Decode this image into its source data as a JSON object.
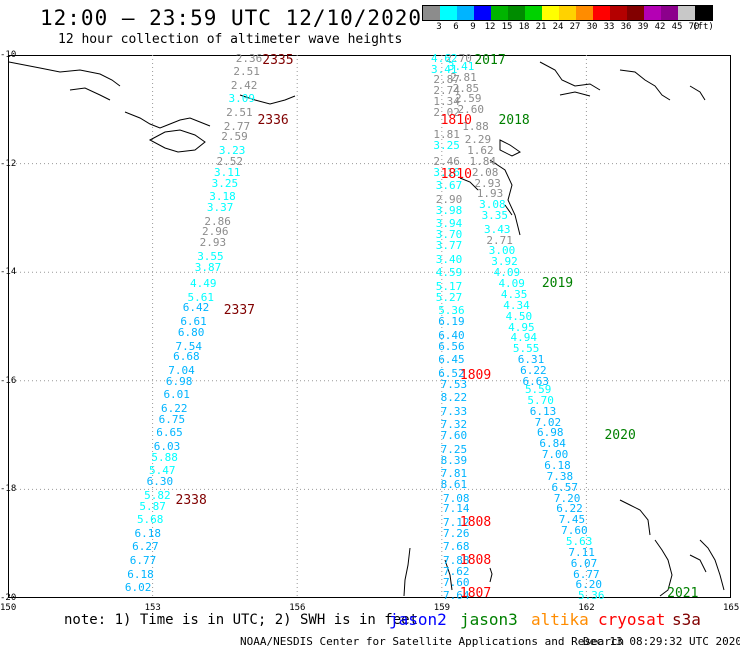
{
  "header": {
    "title": "12:00 – 23:59 UTC 12/10/2020",
    "subtitle": "12 hour collection of altimeter wave heights"
  },
  "legend": {
    "colors": [
      "#8c8c8c",
      "#00ffff",
      "#00b4ff",
      "#0000ff",
      "#00b400",
      "#008c00",
      "#00d200",
      "#ffff00",
      "#ffd200",
      "#ff8c00",
      "#ff0000",
      "#b40000",
      "#820000",
      "#b400b4",
      "#8c008c",
      "#c8c8c8",
      "#000000"
    ],
    "labels": [
      "3",
      "6",
      "9",
      "12",
      "15",
      "18",
      "21",
      "24",
      "27",
      "30",
      "33",
      "36",
      "39",
      "42",
      "45",
      "70",
      "(ft)"
    ]
  },
  "map": {
    "lon_range": [
      150,
      165
    ],
    "lat_range": [
      -20,
      -10
    ],
    "x_ticks": [
      "150",
      "153",
      "156",
      "159",
      "162",
      "165"
    ],
    "y_ticks": [
      "-10",
      "-12",
      "-14",
      "-16",
      "-18",
      "-20"
    ],
    "grid": true
  },
  "passes": [
    {
      "label": "2335",
      "color": "#800000",
      "lat": -10.1,
      "lon": 155.6
    },
    {
      "label": "2336",
      "color": "#800000",
      "lat": -11.2,
      "lon": 155.5
    },
    {
      "label": "2337",
      "color": "#800000",
      "lat": -14.7,
      "lon": 154.8
    },
    {
      "label": "2338",
      "color": "#800000",
      "lat": -18.2,
      "lon": 153.8
    },
    {
      "label": "2017",
      "color": "#008000",
      "lat": -10.1,
      "lon": 160.0
    },
    {
      "label": "2018",
      "color": "#008000",
      "lat": -11.2,
      "lon": 160.5
    },
    {
      "label": "2019",
      "color": "#008000",
      "lat": -14.2,
      "lon": 161.4
    },
    {
      "label": "2020",
      "color": "#008000",
      "lat": -17.0,
      "lon": 162.7
    },
    {
      "label": "2021",
      "color": "#008000",
      "lat": -19.9,
      "lon": 164.0
    },
    {
      "label": "1810",
      "color": "#ff0000",
      "lat": -11.2,
      "lon": 159.3
    },
    {
      "label": "1810",
      "color": "#ff0000",
      "lat": -12.2,
      "lon": 159.3
    },
    {
      "label": "1809",
      "color": "#ff0000",
      "lat": -15.9,
      "lon": 159.7
    },
    {
      "label": "1808",
      "color": "#ff0000",
      "lat": -18.6,
      "lon": 159.7
    },
    {
      "label": "1808",
      "color": "#ff0000",
      "lat": -19.3,
      "lon": 159.7
    },
    {
      "label": "1807",
      "color": "#ff0000",
      "lat": -19.9,
      "lon": 159.7
    }
  ],
  "tracks": [
    {
      "name": "track-2335-2338",
      "points": [
        {
          "v": "2.36",
          "lon": 155.0,
          "lat": -10.05
        },
        {
          "v": "2.51",
          "lon": 154.95,
          "lat": -10.3
        },
        {
          "v": "2.42",
          "lon": 154.9,
          "lat": -10.55
        },
        {
          "v": "3.09",
          "lon": 154.85,
          "lat": -10.8
        },
        {
          "v": "2.51",
          "lon": 154.8,
          "lat": -11.05
        },
        {
          "v": "2.77",
          "lon": 154.75,
          "lat": -11.3
        },
        {
          "v": "2.59",
          "lon": 154.7,
          "lat": -11.5
        },
        {
          "v": "3.23",
          "lon": 154.65,
          "lat": -11.75
        },
        {
          "v": "2.52",
          "lon": 154.6,
          "lat": -11.95
        },
        {
          "v": "3.11",
          "lon": 154.55,
          "lat": -12.15
        },
        {
          "v": "3.25",
          "lon": 154.5,
          "lat": -12.35
        },
        {
          "v": "3.18",
          "lon": 154.45,
          "lat": -12.6
        },
        {
          "v": "3.37",
          "lon": 154.4,
          "lat": -12.8
        },
        {
          "v": "2.86",
          "lon": 154.35,
          "lat": -13.05
        },
        {
          "v": "2.96",
          "lon": 154.3,
          "lat": -13.25
        },
        {
          "v": "2.93",
          "lon": 154.25,
          "lat": -13.45
        },
        {
          "v": "3.55",
          "lon": 154.2,
          "lat": -13.7
        },
        {
          "v": "3.87",
          "lon": 154.15,
          "lat": -13.9
        },
        {
          "v": "4.49",
          "lon": 154.05,
          "lat": -14.2
        },
        {
          "v": "5.61",
          "lon": 154.0,
          "lat": -14.45
        },
        {
          "v": "6.42",
          "lon": 153.9,
          "lat": -14.65
        },
        {
          "v": "6.61",
          "lon": 153.85,
          "lat": -14.9
        },
        {
          "v": "6.80",
          "lon": 153.8,
          "lat": -15.1
        },
        {
          "v": "7.54",
          "lon": 153.75,
          "lat": -15.35
        },
        {
          "v": "6.68",
          "lon": 153.7,
          "lat": -15.55
        },
        {
          "v": "7.04",
          "lon": 153.6,
          "lat": -15.8
        },
        {
          "v": "6.98",
          "lon": 153.55,
          "lat": -16.0
        },
        {
          "v": "6.01",
          "lon": 153.5,
          "lat": -16.25
        },
        {
          "v": "6.22",
          "lon": 153.45,
          "lat": -16.5
        },
        {
          "v": "6.75",
          "lon": 153.4,
          "lat": -16.7
        },
        {
          "v": "6.65",
          "lon": 153.35,
          "lat": -16.95
        },
        {
          "v": "6.03",
          "lon": 153.3,
          "lat": -17.2
        },
        {
          "v": "5.88",
          "lon": 153.25,
          "lat": -17.4
        },
        {
          "v": "5.47",
          "lon": 153.2,
          "lat": -17.65
        },
        {
          "v": "6.30",
          "lon": 153.15,
          "lat": -17.85
        },
        {
          "v": "5.82",
          "lon": 153.1,
          "lat": -18.1
        },
        {
          "v": "5.87",
          "lon": 153.0,
          "lat": -18.3
        },
        {
          "v": "5.68",
          "lon": 152.95,
          "lat": -18.55
        },
        {
          "v": "6.18",
          "lon": 152.9,
          "lat": -18.8
        },
        {
          "v": "6.27",
          "lon": 152.85,
          "lat": -19.05
        },
        {
          "v": "6.77",
          "lon": 152.8,
          "lat": -19.3
        },
        {
          "v": "6.18",
          "lon": 152.75,
          "lat": -19.55
        },
        {
          "v": "6.02",
          "lon": 152.7,
          "lat": -19.8
        }
      ]
    },
    {
      "name": "track-2017-2021",
      "points": [
        {
          "v": "2.70",
          "lon": 159.35,
          "lat": -10.05
        },
        {
          "v": "3.41",
          "lon": 159.4,
          "lat": -10.2
        },
        {
          "v": "2.81",
          "lon": 159.45,
          "lat": -10.4
        },
        {
          "v": "2.85",
          "lon": 159.5,
          "lat": -10.6
        },
        {
          "v": "2.59",
          "lon": 159.55,
          "lat": -10.8
        },
        {
          "v": "2.60",
          "lon": 159.6,
          "lat": -11.0
        },
        {
          "v": "1.88",
          "lon": 159.7,
          "lat": -11.3
        },
        {
          "v": "2.29",
          "lon": 159.75,
          "lat": -11.55
        },
        {
          "v": "1.62",
          "lon": 159.8,
          "lat": -11.75
        },
        {
          "v": "1.84",
          "lon": 159.85,
          "lat": -11.95
        },
        {
          "v": "2.08",
          "lon": 159.9,
          "lat": -12.15
        },
        {
          "v": "2.93",
          "lon": 159.95,
          "lat": -12.35
        },
        {
          "v": "1.93",
          "lon": 160.0,
          "lat": -12.55
        },
        {
          "v": "3.08",
          "lon": 160.05,
          "lat": -12.75
        },
        {
          "v": "3.35",
          "lon": 160.1,
          "lat": -12.95
        },
        {
          "v": "3.43",
          "lon": 160.15,
          "lat": -13.2
        },
        {
          "v": "2.71",
          "lon": 160.2,
          "lat": -13.4
        },
        {
          "v": "3.00",
          "lon": 160.25,
          "lat": -13.6
        },
        {
          "v": "3.92",
          "lon": 160.3,
          "lat": -13.8
        },
        {
          "v": "4.09",
          "lon": 160.35,
          "lat": -14.0
        },
        {
          "v": "4.09",
          "lon": 160.45,
          "lat": -14.2
        },
        {
          "v": "4.35",
          "lon": 160.5,
          "lat": -14.4
        },
        {
          "v": "4.34",
          "lon": 160.55,
          "lat": -14.6
        },
        {
          "v": "4.50",
          "lon": 160.6,
          "lat": -14.8
        },
        {
          "v": "4.95",
          "lon": 160.65,
          "lat": -15.0
        },
        {
          "v": "4.94",
          "lon": 160.7,
          "lat": -15.2
        },
        {
          "v": "5.55",
          "lon": 160.75,
          "lat": -15.4
        },
        {
          "v": "6.31",
          "lon": 160.85,
          "lat": -15.6
        },
        {
          "v": "6.22",
          "lon": 160.9,
          "lat": -15.8
        },
        {
          "v": "6.63",
          "lon": 160.95,
          "lat": -16.0
        },
        {
          "v": "5.59",
          "lon": 161.0,
          "lat": -16.15
        },
        {
          "v": "5.70",
          "lon": 161.05,
          "lat": -16.35
        },
        {
          "v": "6.13",
          "lon": 161.1,
          "lat": -16.55
        },
        {
          "v": "7.02",
          "lon": 161.2,
          "lat": -16.75
        },
        {
          "v": "6.98",
          "lon": 161.25,
          "lat": -16.95
        },
        {
          "v": "6.84",
          "lon": 161.3,
          "lat": -17.15
        },
        {
          "v": "7.00",
          "lon": 161.35,
          "lat": -17.35
        },
        {
          "v": "6.18",
          "lon": 161.4,
          "lat": -17.55
        },
        {
          "v": "7.38",
          "lon": 161.45,
          "lat": -17.75
        },
        {
          "v": "6.57",
          "lon": 161.55,
          "lat": -17.95
        },
        {
          "v": "7.20",
          "lon": 161.6,
          "lat": -18.15
        },
        {
          "v": "6.22",
          "lon": 161.65,
          "lat": -18.35
        },
        {
          "v": "7.45",
          "lon": 161.7,
          "lat": -18.55
        },
        {
          "v": "7.60",
          "lon": 161.75,
          "lat": -18.75
        },
        {
          "v": "5.63",
          "lon": 161.85,
          "lat": -18.95
        },
        {
          "v": "7.11",
          "lon": 161.9,
          "lat": -19.15
        },
        {
          "v": "6.07",
          "lon": 161.95,
          "lat": -19.35
        },
        {
          "v": "6.77",
          "lon": 162.0,
          "lat": -19.55
        },
        {
          "v": "6.20",
          "lon": 162.05,
          "lat": -19.75
        },
        {
          "v": "5.36",
          "lon": 162.1,
          "lat": -19.95
        }
      ]
    },
    {
      "name": "track-1810-1807",
      "points": [
        {
          "v": "4.62",
          "lon": 159.05,
          "lat": -10.05
        },
        {
          "v": "3.41",
          "lon": 159.05,
          "lat": -10.25
        },
        {
          "v": "2.87",
          "lon": 159.1,
          "lat": -10.45
        },
        {
          "v": "2.74",
          "lon": 159.1,
          "lat": -10.65
        },
        {
          "v": "1.34",
          "lon": 159.1,
          "lat": -10.85
        },
        {
          "v": "2.02",
          "lon": 159.1,
          "lat": -11.05
        },
        {
          "v": "1.81",
          "lon": 159.1,
          "lat": -11.45
        },
        {
          "v": "3.25",
          "lon": 159.1,
          "lat": -11.65
        },
        {
          "v": "2.46",
          "lon": 159.1,
          "lat": -11.95
        },
        {
          "v": "3.16",
          "lon": 159.1,
          "lat": -12.15
        },
        {
          "v": "3.67",
          "lon": 159.15,
          "lat": -12.4
        },
        {
          "v": "2.90",
          "lon": 159.15,
          "lat": -12.65
        },
        {
          "v": "3.98",
          "lon": 159.15,
          "lat": -12.85
        },
        {
          "v": "3.94",
          "lon": 159.15,
          "lat": -13.1
        },
        {
          "v": "3.70",
          "lon": 159.15,
          "lat": -13.3
        },
        {
          "v": "3.77",
          "lon": 159.15,
          "lat": -13.5
        },
        {
          "v": "3.40",
          "lon": 159.15,
          "lat": -13.75
        },
        {
          "v": "4.59",
          "lon": 159.15,
          "lat": -14.0
        },
        {
          "v": "5.17",
          "lon": 159.15,
          "lat": -14.25
        },
        {
          "v": "5.27",
          "lon": 159.15,
          "lat": -14.45
        },
        {
          "v": "5.36",
          "lon": 159.2,
          "lat": -14.7
        },
        {
          "v": "6.19",
          "lon": 159.2,
          "lat": -14.9
        },
        {
          "v": "6.40",
          "lon": 159.2,
          "lat": -15.15
        },
        {
          "v": "6.56",
          "lon": 159.2,
          "lat": -15.35
        },
        {
          "v": "6.45",
          "lon": 159.2,
          "lat": -15.6
        },
        {
          "v": "6.52",
          "lon": 159.2,
          "lat": -15.85
        },
        {
          "v": "7.53",
          "lon": 159.25,
          "lat": -16.05
        },
        {
          "v": "8.22",
          "lon": 159.25,
          "lat": -16.3
        },
        {
          "v": "7.33",
          "lon": 159.25,
          "lat": -16.55
        },
        {
          "v": "7.32",
          "lon": 159.25,
          "lat": -16.8
        },
        {
          "v": "7.60",
          "lon": 159.25,
          "lat": -17.0
        },
        {
          "v": "7.25",
          "lon": 159.25,
          "lat": -17.25
        },
        {
          "v": "8.39",
          "lon": 159.25,
          "lat": -17.45
        },
        {
          "v": "7.81",
          "lon": 159.25,
          "lat": -17.7
        },
        {
          "v": "8.61",
          "lon": 159.25,
          "lat": -17.9
        },
        {
          "v": "7.08",
          "lon": 159.3,
          "lat": -18.15
        },
        {
          "v": "7.14",
          "lon": 159.3,
          "lat": -18.35
        },
        {
          "v": "7.12",
          "lon": 159.3,
          "lat": -18.6
        },
        {
          "v": "7.26",
          "lon": 159.3,
          "lat": -18.8
        },
        {
          "v": "7.68",
          "lon": 159.3,
          "lat": -19.05
        },
        {
          "v": "7.88",
          "lon": 159.3,
          "lat": -19.3
        },
        {
          "v": "7.62",
          "lon": 159.3,
          "lat": -19.5
        },
        {
          "v": "7.60",
          "lon": 159.3,
          "lat": -19.7
        },
        {
          "v": "7.64",
          "lon": 159.3,
          "lat": -19.95
        }
      ]
    }
  ],
  "footer": {
    "note": "note: 1) Time is in UTC; 2) SWH is in feet",
    "satellites": [
      {
        "name": "jason2",
        "color": "#0000ff"
      },
      {
        "name": "jason3",
        "color": "#008000"
      },
      {
        "name": "altika",
        "color": "#ff8c00"
      },
      {
        "name": "cryosat",
        "color": "#ff0000"
      },
      {
        "name": "s3a",
        "color": "#800000"
      }
    ],
    "credit": "NOAA/NESDIS Center for Satellite Applications and Research",
    "timestamp": "Dec 13 08:29:32 UTC 2020"
  }
}
